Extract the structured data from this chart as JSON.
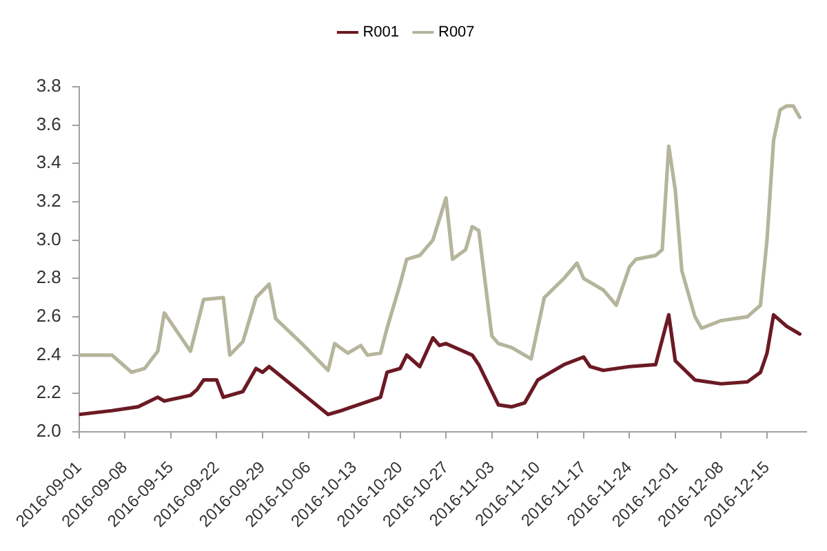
{
  "chart_data": {
    "type": "line",
    "series": [
      {
        "name": "R001",
        "color": "#6b1a24",
        "x": [
          "2016-09-01",
          "2016-09-06",
          "2016-09-10",
          "2016-09-13",
          "2016-09-14",
          "2016-09-18",
          "2016-09-19",
          "2016-09-20",
          "2016-09-22",
          "2016-09-23",
          "2016-09-26",
          "2016-09-28",
          "2016-09-29",
          "2016-09-30",
          "2016-10-09",
          "2016-10-11",
          "2016-10-17",
          "2016-10-18",
          "2016-10-20",
          "2016-10-21",
          "2016-10-23",
          "2016-10-25",
          "2016-10-26",
          "2016-10-27",
          "2016-10-31",
          "2016-11-01",
          "2016-11-04",
          "2016-11-06",
          "2016-11-08",
          "2016-11-10",
          "2016-11-12",
          "2016-11-14",
          "2016-11-17",
          "2016-11-18",
          "2016-11-20",
          "2016-11-24",
          "2016-11-28",
          "2016-11-30",
          "2016-12-01",
          "2016-12-04",
          "2016-12-08",
          "2016-12-12",
          "2016-12-14",
          "2016-12-15",
          "2016-12-16",
          "2016-12-18",
          "2016-12-20"
        ],
        "values": [
          2.09,
          2.11,
          2.13,
          2.18,
          2.16,
          2.19,
          2.22,
          2.27,
          2.27,
          2.18,
          2.21,
          2.33,
          2.31,
          2.34,
          2.09,
          2.11,
          2.18,
          2.31,
          2.33,
          2.4,
          2.34,
          2.49,
          2.45,
          2.46,
          2.4,
          2.35,
          2.14,
          2.13,
          2.15,
          2.27,
          2.31,
          2.35,
          2.39,
          2.34,
          2.32,
          2.34,
          2.35,
          2.61,
          2.37,
          2.27,
          2.25,
          2.26,
          2.31,
          2.41,
          2.61,
          2.55,
          2.51
        ]
      },
      {
        "name": "R007",
        "color": "#b5b59c",
        "x": [
          "2016-09-01",
          "2016-09-06",
          "2016-09-09",
          "2016-09-11",
          "2016-09-13",
          "2016-09-14",
          "2016-09-16",
          "2016-09-18",
          "2016-09-20",
          "2016-09-23",
          "2016-09-24",
          "2016-09-26",
          "2016-09-28",
          "2016-09-30",
          "2016-10-01",
          "2016-10-05",
          "2016-10-09",
          "2016-10-10",
          "2016-10-12",
          "2016-10-14",
          "2016-10-15",
          "2016-10-17",
          "2016-10-18",
          "2016-10-20",
          "2016-10-21",
          "2016-10-23",
          "2016-10-25",
          "2016-10-27",
          "2016-10-28",
          "2016-10-30",
          "2016-10-31",
          "2016-11-01",
          "2016-11-03",
          "2016-11-04",
          "2016-11-06",
          "2016-11-09",
          "2016-11-11",
          "2016-11-14",
          "2016-11-16",
          "2016-11-17",
          "2016-11-20",
          "2016-11-22",
          "2016-11-24",
          "2016-11-25",
          "2016-11-28",
          "2016-11-29",
          "2016-11-30",
          "2016-12-01",
          "2016-12-02",
          "2016-12-04",
          "2016-12-05",
          "2016-12-08",
          "2016-12-12",
          "2016-12-14",
          "2016-12-15",
          "2016-12-16",
          "2016-12-17",
          "2016-12-18",
          "2016-12-19",
          "2016-12-20"
        ],
        "values": [
          2.4,
          2.4,
          2.31,
          2.33,
          2.42,
          2.62,
          2.52,
          2.42,
          2.69,
          2.7,
          2.4,
          2.47,
          2.7,
          2.77,
          2.59,
          2.46,
          2.32,
          2.46,
          2.41,
          2.45,
          2.4,
          2.41,
          2.54,
          2.77,
          2.9,
          2.92,
          3.0,
          3.22,
          2.9,
          2.95,
          3.07,
          3.05,
          2.5,
          2.46,
          2.44,
          2.38,
          2.7,
          2.8,
          2.88,
          2.8,
          2.74,
          2.66,
          2.86,
          2.9,
          2.92,
          2.95,
          3.49,
          3.26,
          2.84,
          2.6,
          2.54,
          2.58,
          2.6,
          2.66,
          3.0,
          3.52,
          3.68,
          3.7,
          3.7,
          3.64
        ]
      }
    ],
    "xlim": [
      "2016-09-01",
      "2016-12-21"
    ],
    "xticks": [
      "2016-09-01",
      "2016-09-08",
      "2016-09-15",
      "2016-09-22",
      "2016-09-29",
      "2016-10-06",
      "2016-10-13",
      "2016-10-20",
      "2016-10-27",
      "2016-11-03",
      "2016-11-10",
      "2016-11-17",
      "2016-11-24",
      "2016-12-01",
      "2016-12-08",
      "2016-12-15"
    ],
    "ylim": [
      2.0,
      3.8
    ],
    "yticks": [
      {
        "value": 2.0,
        "label": "2.0"
      },
      2.2,
      2.4,
      2.6,
      2.8,
      {
        "value": 3.0,
        "label": "3.0"
      },
      3.2,
      3.4,
      3.6,
      3.8
    ],
    "grid": false,
    "legend": "top"
  }
}
